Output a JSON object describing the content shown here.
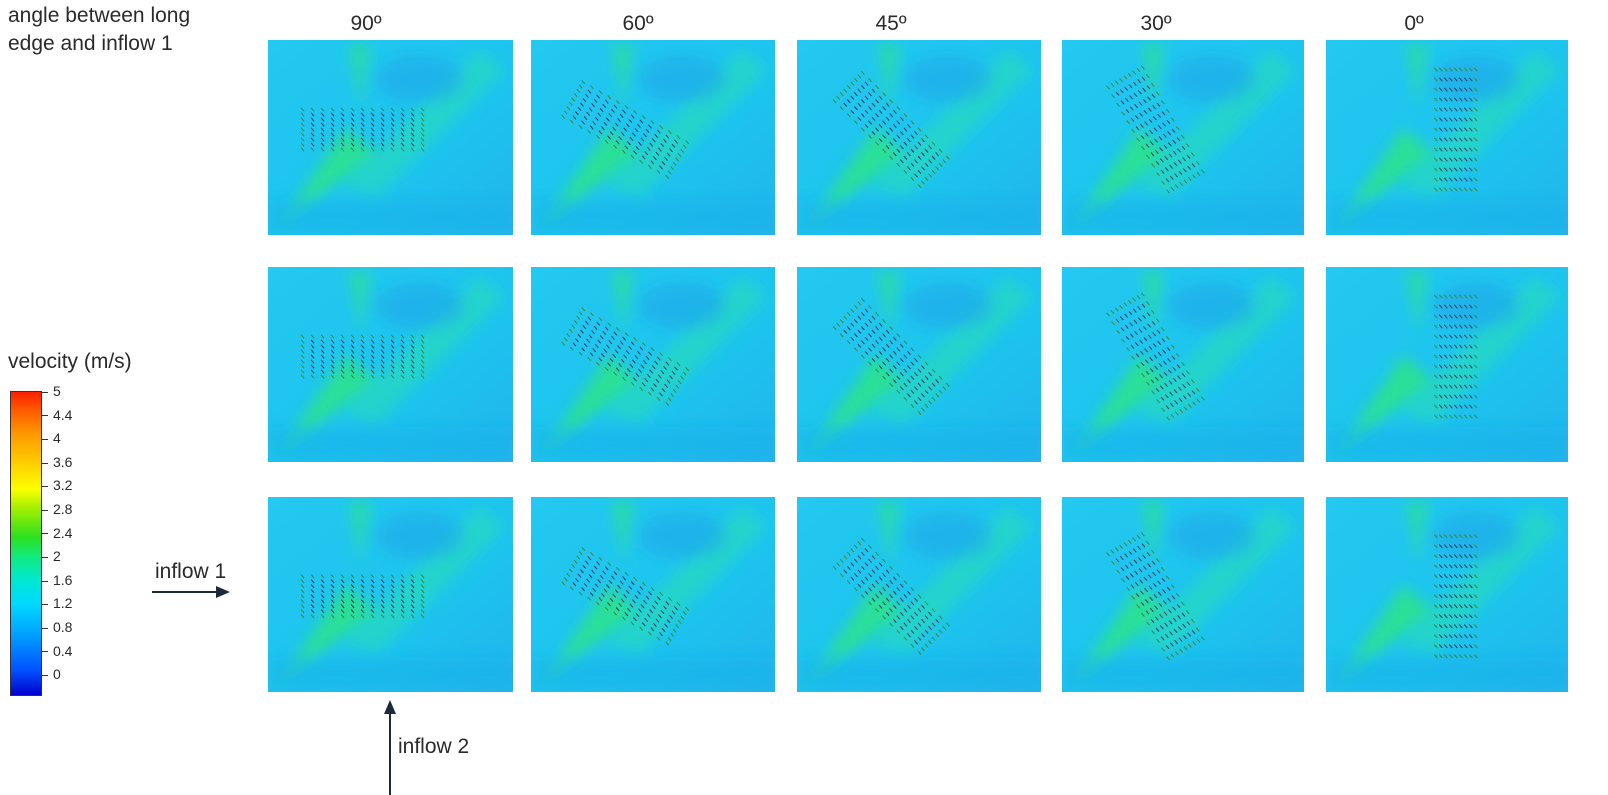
{
  "figure": {
    "caption": "angle between long\nedge and inflow 1",
    "columns": [
      "90º",
      "60º",
      "45º",
      "30º",
      "0º"
    ],
    "rows": 3,
    "legend": {
      "title": "velocity (m/s)",
      "ticks": [
        "5",
        "4.4",
        "4",
        "3.6",
        "3.2",
        "2.8",
        "2.4",
        "2",
        "1.6",
        "1.2",
        "0.8",
        "0.4",
        "0"
      ],
      "colors": [
        "#0000cc",
        "#00a0ff",
        "#00e8d0",
        "#2be020",
        "#ffff00",
        "#ff9a00",
        "#ff2000"
      ]
    },
    "inflow1_label": "inflow 1",
    "inflow2_label": "inflow 2",
    "field_colors": {
      "background": "#1cc4ee",
      "jet": "#2ee87a",
      "wake": "#1aa8e8"
    },
    "panel_angles_deg": [
      90,
      60,
      45,
      30,
      0
    ]
  }
}
